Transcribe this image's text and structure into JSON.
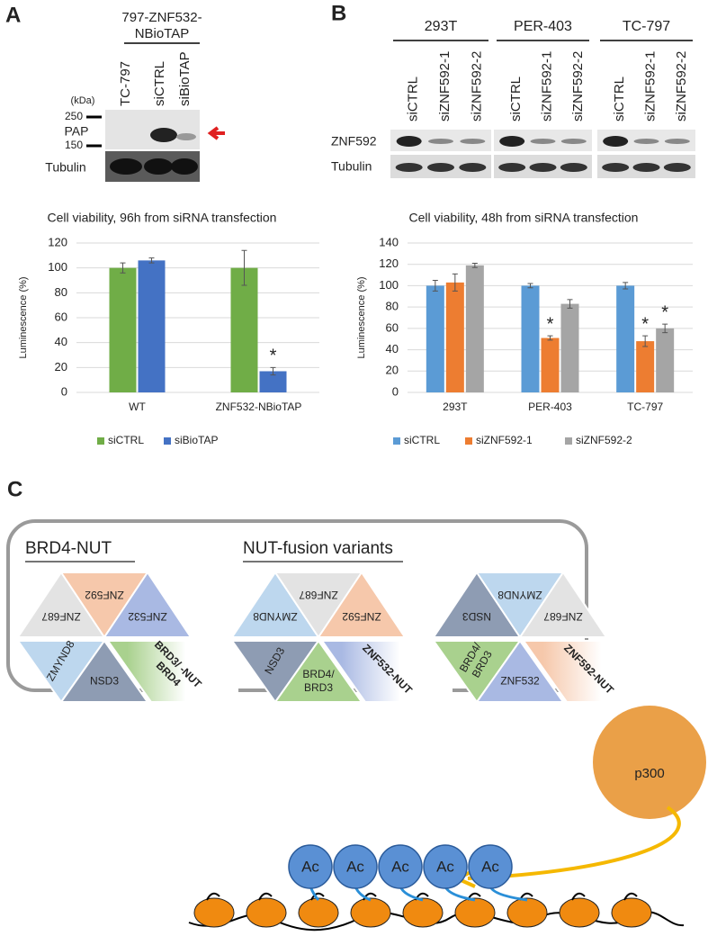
{
  "panel_labels": [
    "A",
    "B",
    "C"
  ],
  "blot_a": {
    "header": [
      "797-ZNF532-",
      "NBioTAP"
    ],
    "lanes": [
      "TC-797",
      "siCTRL",
      "siBioTAP"
    ],
    "unit": "(kDa)",
    "markers": [
      250,
      150
    ],
    "rows": [
      "PAP",
      "Tubulin"
    ]
  },
  "blot_b": {
    "groups": [
      {
        "name": "293T",
        "lanes": [
          "siCTRL",
          "siZNF592-1",
          "siZNF592-2"
        ]
      },
      {
        "name": "PER-403",
        "lanes": [
          "siCTRL",
          "siZNF592-1",
          "siZNF592-2"
        ]
      },
      {
        "name": "TC-797",
        "lanes": [
          "siCTRL",
          "siZNF592-1",
          "siZNF592-2"
        ]
      }
    ],
    "rows": [
      "ZNF592",
      "Tubulin"
    ]
  },
  "chart_data": [
    {
      "type": "bar",
      "title": "Cell viability, 96h from siRNA transfection",
      "y_label": "Luminescence (%)",
      "categories": [
        "WT",
        "ZNF532-NBioTAP"
      ],
      "series": [
        {
          "name": "siCTRL",
          "color": "#70ad47",
          "values": [
            100,
            100
          ],
          "errors": [
            4,
            14
          ]
        },
        {
          "name": "siBioTAP",
          "color": "#4472c4",
          "values": [
            106,
            17
          ],
          "errors": [
            2,
            3
          ]
        }
      ],
      "annotations": [
        {
          "text": "*",
          "category": "ZNF532-NBioTAP",
          "series": "siBioTAP"
        }
      ],
      "ylim": [
        0,
        120
      ],
      "yticks": [
        0,
        20,
        40,
        60,
        80,
        100,
        120
      ],
      "grid": true,
      "legend": "bottom"
    },
    {
      "type": "bar",
      "title": "Cell viability, 48h from siRNA transfection",
      "y_label": "Luminescence (%)",
      "categories": [
        "293T",
        "PER-403",
        "TC-797"
      ],
      "series": [
        {
          "name": "siCTRL",
          "color": "#5b9bd5",
          "values": [
            100,
            100,
            100
          ],
          "errors": [
            5,
            2,
            3
          ]
        },
        {
          "name": "siZNF592-1",
          "color": "#ed7d31",
          "values": [
            103,
            51,
            48
          ],
          "errors": [
            8,
            2,
            5
          ]
        },
        {
          "name": "siZNF592-2",
          "color": "#a5a5a5",
          "values": [
            119,
            83,
            60
          ],
          "errors": [
            2,
            4,
            4
          ]
        }
      ],
      "annotations": [
        {
          "text": "*",
          "category": "PER-403",
          "series": "siZNF592-1"
        },
        {
          "text": "*",
          "category": "TC-797",
          "series": "siZNF592-1"
        },
        {
          "text": "*",
          "category": "TC-797",
          "series": "siZNF592-2"
        }
      ],
      "ylim": [
        0,
        140
      ],
      "yticks": [
        0,
        20,
        40,
        60,
        80,
        100,
        120,
        140
      ],
      "grid": true,
      "legend": "bottom"
    }
  ],
  "diagram": {
    "box_titles": [
      "BRD4-NUT",
      "NUT-fusion variants"
    ],
    "groups": [
      [
        {
          "label": [
            "ZNF687"
          ],
          "color": "#e3e3e3"
        },
        {
          "label": [
            "ZNF592"
          ],
          "color": "#f6c8ab"
        },
        {
          "label": [
            "ZNF532"
          ],
          "color": "#a9b9e3"
        },
        {
          "label": [
            "ZMYND8"
          ],
          "color": "#bdd7ee"
        },
        {
          "label": [
            "NSD3"
          ],
          "color": "#8e9cb3"
        },
        {
          "label": [
            "BRD3/ -NUT",
            "BRD4"
          ],
          "color": "#a9d18e"
        }
      ],
      [
        {
          "label": [
            "ZMYND8"
          ],
          "color": "#bdd7ee"
        },
        {
          "label": [
            "ZNF687"
          ],
          "color": "#e3e3e3"
        },
        {
          "label": [
            "ZNF592"
          ],
          "color": "#f6c8ab"
        },
        {
          "label": [
            "NSD3"
          ],
          "color": "#8e9cb3"
        },
        {
          "label": [
            "BRD4/",
            "BRD3"
          ],
          "color": "#a9d18e"
        },
        {
          "label": [
            "ZNF532-NUT"
          ],
          "color": "#a9b9e3"
        }
      ],
      [
        {
          "label": [
            "NSD3"
          ],
          "color": "#8e9cb3"
        },
        {
          "label": [
            "ZMYND8"
          ],
          "color": "#bdd7ee"
        },
        {
          "label": [
            "ZNF687"
          ],
          "color": "#e3e3e3"
        },
        {
          "label": [
            "BRD4/",
            "BRD3"
          ],
          "color": "#a9d18e"
        },
        {
          "label": [
            "ZNF532"
          ],
          "color": "#a9b9e3"
        },
        {
          "label": [
            "ZNF592-NUT"
          ],
          "color": "#f6c8ab"
        }
      ]
    ],
    "enzyme": "p300",
    "marks": [
      "Ac",
      "Ac",
      "Ac",
      "Ac",
      "Ac"
    ]
  }
}
